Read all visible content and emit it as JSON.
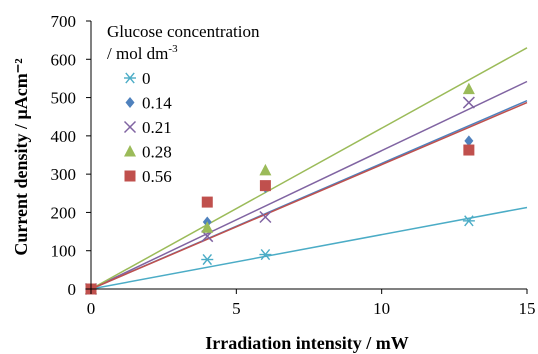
{
  "chart_data": {
    "type": "scatter",
    "xlabel": "Irradiation intensity / mW",
    "ylabel": "Current density / μAcm⁻²",
    "xlim": [
      0,
      15
    ],
    "ylim": [
      0,
      700
    ],
    "x_ticks": [
      0,
      5,
      10,
      15
    ],
    "y_ticks": [
      0,
      100,
      200,
      300,
      400,
      500,
      600,
      700
    ],
    "grid": false,
    "legend": {
      "placement": "top-left",
      "title_line1": "Glucose concentration",
      "title_line2_prefix": "/ mol dm",
      "title_line2_sup": "-3"
    },
    "trendline": "linear",
    "series": [
      {
        "name": "0",
        "marker": "asterisk",
        "color": "#4BACC6",
        "x": [
          0,
          4,
          6,
          13
        ],
        "y": [
          0,
          77,
          90,
          178
        ],
        "fit_end_y": 213
      },
      {
        "name": "0.14",
        "marker": "diamond",
        "color": "#4F81BD",
        "x": [
          0,
          4,
          6,
          13
        ],
        "y": [
          0,
          175,
          265,
          387
        ],
        "fit_end_y": 492
      },
      {
        "name": "0.21",
        "marker": "x",
        "color": "#8064A2",
        "x": [
          0,
          4,
          6,
          13
        ],
        "y": [
          0,
          138,
          188,
          487
        ],
        "fit_end_y": 542
      },
      {
        "name": "0.28",
        "marker": "triangle",
        "color": "#9BBB59",
        "x": [
          0,
          4,
          6,
          13
        ],
        "y": [
          0,
          160,
          310,
          522
        ],
        "fit_end_y": 630
      },
      {
        "name": "0.56",
        "marker": "square",
        "color": "#C0504D",
        "x": [
          0,
          4,
          6,
          13
        ],
        "y": [
          0,
          227,
          270,
          363
        ],
        "fit_end_y": 487
      }
    ]
  }
}
